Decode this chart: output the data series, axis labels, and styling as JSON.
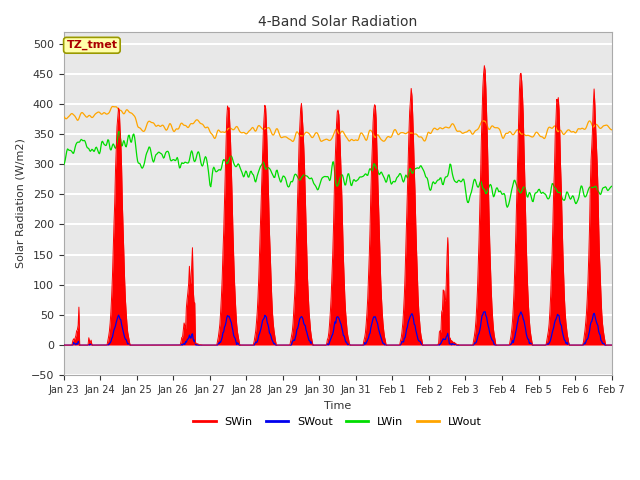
{
  "title": "4-Band Solar Radiation",
  "xlabel": "Time",
  "ylabel": "Solar Radiation (W/m2)",
  "annotation_text": "TZ_tmet",
  "annotation_bg": "#FFFFAA",
  "annotation_border": "#888800",
  "annotation_color": "#AA0000",
  "ylim": [
    -50,
    520
  ],
  "yticks": [
    -50,
    0,
    50,
    100,
    150,
    200,
    250,
    300,
    350,
    400,
    450,
    500
  ],
  "colors": {
    "SWin": "#FF0000",
    "SWout": "#0000EE",
    "LWin": "#00DD00",
    "LWout": "#FFA500"
  },
  "bg_color": "#E8E8E8",
  "num_days": 15,
  "tick_labels": [
    "Jan 23",
    "Jan 24",
    "Jan 25",
    "Jan 26",
    "Jan 27",
    "Jan 28",
    "Jan 29",
    "Jan 30",
    "Jan 31",
    "Feb 1",
    "Feb 2",
    "Feb 3",
    "Feb 4",
    "Feb 5",
    "Feb 6",
    "Feb 7"
  ]
}
